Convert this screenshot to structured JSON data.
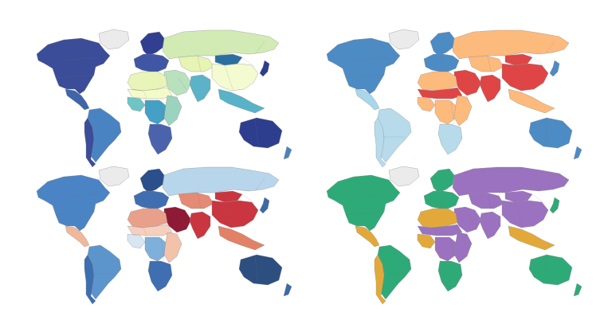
{
  "maps": [
    {
      "id": "p1",
      "colors": {
        "greenland": "#ebebeb",
        "north_america": "#3b4d98",
        "central_america": "#3f64a8",
        "south_america": "#4a83c2",
        "andes": "#3b4d98",
        "europe_north": "#313f91",
        "europe_west": "#3f56a4",
        "russia": "#d2ebb4",
        "central_asia": "#e6f4b4",
        "china": "#f4fbd0",
        "mongolia": "#2a6fa0",
        "india": "#5cb3c7",
        "middle_east": "#b9e1bd",
        "saharan_africa": "#e9f5b8",
        "sahel": "#f5fbc8",
        "west_africa": "#6fc4c6",
        "central_africa": "#45a0c5",
        "east_africa": "#9bd3bf",
        "southern_africa": "#4a63ac",
        "southeast_asia": "#58b3c8",
        "australia": "#2e3e8e",
        "new_zealand": "#4a83c2",
        "japan": "#2e3e8e"
      }
    },
    {
      "id": "p2",
      "colors": {
        "greenland": "#ebebeb",
        "north_america": "#4d8bc4",
        "central_america": "#a9d6e8",
        "south_america": "#b7dbeb",
        "andes": "#b7dbeb",
        "europe_north": "#4d8bc4",
        "europe_west": "#4d8bc4",
        "russia": "#fdba7d",
        "central_asia": "#fdba7d",
        "china": "#df4545",
        "mongolia": "#df4545",
        "india": "#df4545",
        "middle_east": "#df4545",
        "saharan_africa": "#fdba7d",
        "sahel": "#df4545",
        "west_africa": "#fdba7d",
        "central_africa": "#fdba7d",
        "east_africa": "#fdba7d",
        "southern_africa": "#b7dbeb",
        "southeast_asia": "#fdba7d",
        "australia": "#4d8bc4",
        "new_zealand": "#4d8bc4",
        "japan": "#4d8bc4"
      }
    },
    {
      "id": "p3",
      "colors": {
        "greenland": "#ebebeb",
        "north_america": "#4a84c4",
        "central_america": "#f1b79a",
        "south_america": "#5c95cb",
        "andes": "#3d6eaf",
        "europe_north": "#2a4f8a",
        "europe_west": "#3f6fb0",
        "russia": "#b8d6eb",
        "central_asia": "#e58a74",
        "china": "#c9363f",
        "mongolia": "#c9363f",
        "india": "#c9363f",
        "middle_east": "#8e1a36",
        "saharan_africa": "#e9a08a",
        "sahel": "#f6d0be",
        "west_africa": "#d8e6f2",
        "central_africa": "#7fb0dc",
        "east_africa": "#f2c2aa",
        "southern_africa": "#3f6fb0",
        "southeast_asia": "#e38167",
        "australia": "#2c4f80",
        "new_zealand": "#3a6aa8",
        "japan": "#3a6aa8"
      }
    },
    {
      "id": "p4",
      "colors": {
        "greenland": "#ebebeb",
        "north_america": "#2eaa78",
        "central_america": "#e2a93a",
        "south_america": "#2eaa78",
        "andes": "#e2a93a",
        "europe_north": "#2eaa78",
        "europe_west": "#2eaa78",
        "russia": "#9b72bf",
        "central_asia": "#9b72bf",
        "china": "#9b72bf",
        "mongolia": "#9b72bf",
        "india": "#9b72bf",
        "middle_east": "#9b72bf",
        "saharan_africa": "#e2a93a",
        "sahel": "#9b72bf",
        "west_africa": "#e2a93a",
        "central_africa": "#9b72bf",
        "east_africa": "#9b72bf",
        "southern_africa": "#2eaa78",
        "southeast_asia": "#e2a93a",
        "australia": "#2eaa78",
        "new_zealand": "#2eaa78",
        "japan": "#2eaa78"
      }
    }
  ]
}
